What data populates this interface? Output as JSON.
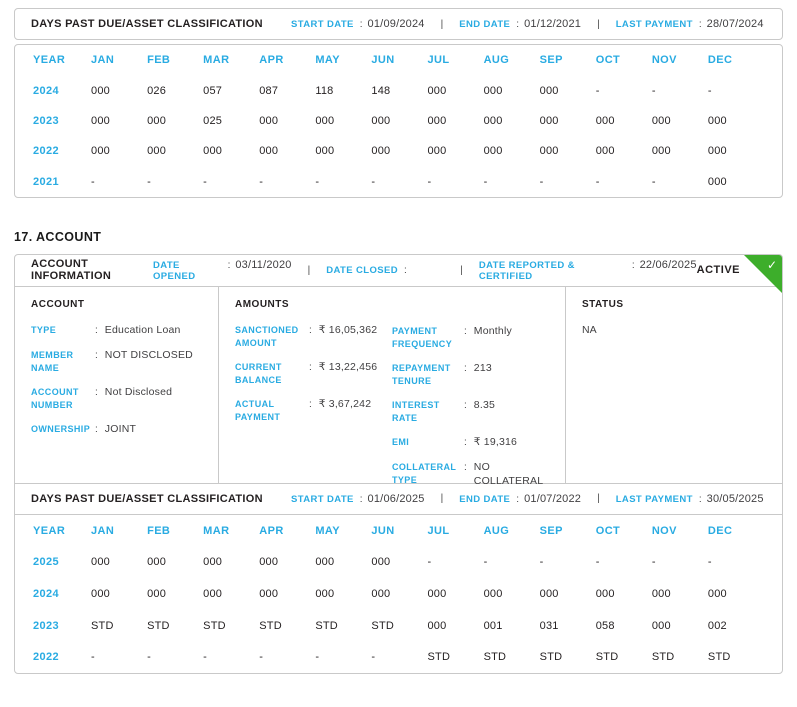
{
  "colors": {
    "accent": "#29ABE2",
    "green": "#3DAE2B"
  },
  "section_heading": "17. ACCOUNT",
  "dpd1": {
    "title": "DAYS PAST DUE/ASSET CLASSIFICATION",
    "start_date_label": "START DATE",
    "start_date_value": "01/09/2024",
    "end_date_label": "END DATE",
    "end_date_value": "01/12/2021",
    "last_payment_label": "LAST PAYMENT",
    "last_payment_value": "28/07/2024",
    "table": {
      "columns": [
        "YEAR",
        "JAN",
        "FEB",
        "MAR",
        "APR",
        "MAY",
        "JUN",
        "JUL",
        "AUG",
        "SEP",
        "OCT",
        "NOV",
        "DEC"
      ],
      "rows": [
        {
          "year": "2024",
          "values": [
            "000",
            "026",
            "057",
            "087",
            "118",
            "148",
            "000",
            "000",
            "000",
            "-",
            "-",
            "-"
          ]
        },
        {
          "year": "2023",
          "values": [
            "000",
            "000",
            "025",
            "000",
            "000",
            "000",
            "000",
            "000",
            "000",
            "000",
            "000",
            "000"
          ]
        },
        {
          "year": "2022",
          "values": [
            "000",
            "000",
            "000",
            "000",
            "000",
            "000",
            "000",
            "000",
            "000",
            "000",
            "000",
            "000"
          ]
        },
        {
          "year": "2021",
          "values": [
            "-",
            "-",
            "-",
            "-",
            "-",
            "-",
            "-",
            "-",
            "-",
            "-",
            "-",
            "000"
          ]
        }
      ]
    }
  },
  "account_info": {
    "title": "ACCOUNT INFORMATION",
    "date_opened_label": "DATE OPENED",
    "date_opened_value": "03/11/2020",
    "date_closed_label": "DATE CLOSED",
    "date_closed_value": "",
    "date_reported_label": "DATE REPORTED & CERTIFIED",
    "date_reported_value": "22/06/2025",
    "status_badge": "ACTIVE",
    "account": {
      "title": "ACCOUNT",
      "fields": [
        {
          "label": "TYPE",
          "value": "Education Loan"
        },
        {
          "label": "MEMBER NAME",
          "value": "NOT DISCLOSED"
        },
        {
          "label": "ACCOUNT NUMBER",
          "value": "Not Disclosed"
        },
        {
          "label": "OWNERSHIP",
          "value": "JOINT"
        }
      ]
    },
    "amounts": {
      "title": "AMOUNTS",
      "left_fields": [
        {
          "label": "SANCTIONED AMOUNT",
          "value": "₹ 16,05,362"
        },
        {
          "label": "CURRENT BALANCE",
          "value": "₹ 13,22,456"
        },
        {
          "label": "ACTUAL PAYMENT",
          "value": "₹ 3,67,242"
        }
      ],
      "right_fields": [
        {
          "label": "PAYMENT FREQUENCY",
          "value": "Monthly"
        },
        {
          "label": "REPAYMENT TENURE",
          "value": "213"
        },
        {
          "label": "INTEREST RATE",
          "value": "8.35"
        },
        {
          "label": "EMI",
          "value": "₹ 19,316"
        },
        {
          "label": "COLLATERAL TYPE",
          "value": "NO COLLATERAL"
        }
      ]
    },
    "status": {
      "title": "STATUS",
      "value": "NA"
    }
  },
  "dpd2": {
    "title": "DAYS PAST DUE/ASSET CLASSIFICATION",
    "start_date_label": "START DATE",
    "start_date_value": "01/06/2025",
    "end_date_label": "END DATE",
    "end_date_value": "01/07/2022",
    "last_payment_label": "LAST PAYMENT",
    "last_payment_value": "30/05/2025",
    "table": {
      "columns": [
        "YEAR",
        "JAN",
        "FEB",
        "MAR",
        "APR",
        "MAY",
        "JUN",
        "JUL",
        "AUG",
        "SEP",
        "OCT",
        "NOV",
        "DEC"
      ],
      "rows": [
        {
          "year": "2025",
          "values": [
            "000",
            "000",
            "000",
            "000",
            "000",
            "000",
            "-",
            "-",
            "-",
            "-",
            "-",
            "-"
          ]
        },
        {
          "year": "2024",
          "values": [
            "000",
            "000",
            "000",
            "000",
            "000",
            "000",
            "000",
            "000",
            "000",
            "000",
            "000",
            "000"
          ]
        },
        {
          "year": "2023",
          "values": [
            "STD",
            "STD",
            "STD",
            "STD",
            "STD",
            "STD",
            "000",
            "001",
            "031",
            "058",
            "000",
            "002"
          ]
        },
        {
          "year": "2022",
          "values": [
            "-",
            "-",
            "-",
            "-",
            "-",
            "-",
            "STD",
            "STD",
            "STD",
            "STD",
            "STD",
            "STD"
          ]
        }
      ]
    }
  }
}
